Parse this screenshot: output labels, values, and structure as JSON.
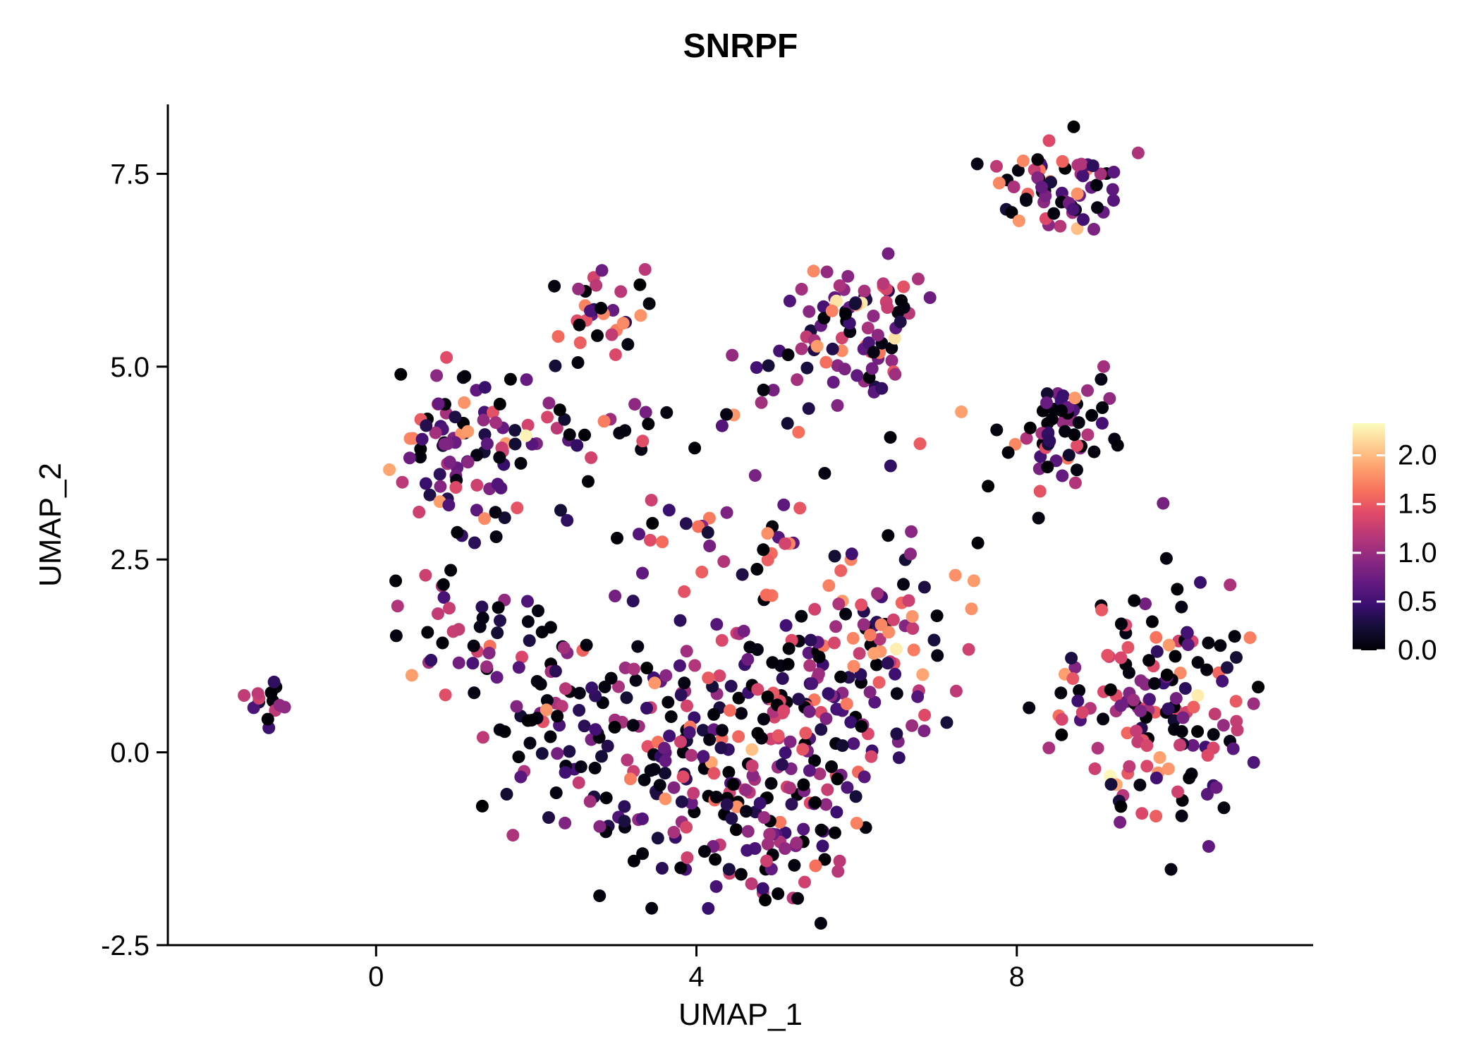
{
  "chart_data": {
    "type": "scatter",
    "title": "SNRPF",
    "xlabel": "UMAP_1",
    "ylabel": "UMAP_2",
    "grid": false,
    "xlim": [
      -2.6,
      11.7
    ],
    "ylim": [
      -2.5,
      8.4
    ],
    "x_ticks": {
      "values": [
        0,
        4,
        8
      ],
      "labels": [
        "0",
        "4",
        "8"
      ]
    },
    "y_ticks": {
      "values": [
        -2.5,
        0.0,
        2.5,
        5.0,
        7.5
      ],
      "labels": [
        "-2.5",
        "0.0",
        "2.5",
        "5.0",
        "7.5"
      ]
    },
    "legend": {
      "position": "right",
      "vmin": 0,
      "vmax": 2.33,
      "ticks": [
        {
          "value": 2.0,
          "label": "2.0"
        },
        {
          "value": 1.5,
          "label": "1.5"
        },
        {
          "value": 1.0,
          "label": "1.0"
        },
        {
          "value": 0.5,
          "label": "0.5"
        },
        {
          "value": 0.0,
          "label": "0.0"
        }
      ]
    },
    "colormap": {
      "name": "magma",
      "stops": [
        "#000004",
        "#140e36",
        "#3b0f70",
        "#641a80",
        "#8c2981",
        "#b73779",
        "#de4968",
        "#f7705c",
        "#fe9f6d",
        "#fece91",
        "#fcfdbf"
      ]
    },
    "point_radius_px": 9,
    "seed": 20,
    "value_bins": [
      [
        0,
        0.08
      ],
      [
        0.2,
        0.6
      ],
      [
        0.6,
        1.1
      ],
      [
        1.1,
        1.5
      ],
      [
        1.5,
        1.9
      ],
      [
        1.9,
        2.3
      ]
    ],
    "clusters": [
      {
        "name": "far-left-blob",
        "cx": -1.35,
        "cy": 0.68,
        "sx": 0.2,
        "sy": 0.13,
        "n": 14,
        "bin_weights": [
          0.3,
          0.2,
          0.3,
          0.2,
          0.0,
          0.0
        ]
      },
      {
        "name": "upper-left",
        "cx": 1.15,
        "cy": 3.95,
        "sx": 0.5,
        "sy": 0.5,
        "n": 95,
        "bin_weights": [
          0.22,
          0.2,
          0.24,
          0.2,
          0.12,
          0.02
        ]
      },
      {
        "name": "left-mid",
        "cx": 1.3,
        "cy": 1.5,
        "sx": 0.5,
        "sy": 0.38,
        "n": 48,
        "bin_weights": [
          0.42,
          0.22,
          0.2,
          0.12,
          0.04,
          0.0
        ]
      },
      {
        "name": "central-west",
        "cx": 3.8,
        "cy": 0.0,
        "sx": 0.85,
        "sy": 0.8,
        "n": 150,
        "bin_weights": [
          0.34,
          0.22,
          0.22,
          0.15,
          0.06,
          0.01
        ]
      },
      {
        "name": "central-east",
        "cx": 5.3,
        "cy": 0.4,
        "sx": 0.85,
        "sy": 0.8,
        "n": 150,
        "bin_weights": [
          0.3,
          0.2,
          0.22,
          0.18,
          0.09,
          0.01
        ]
      },
      {
        "name": "central-south",
        "cx": 4.6,
        "cy": -1.3,
        "sx": 0.75,
        "sy": 0.38,
        "n": 55,
        "bin_weights": [
          0.36,
          0.22,
          0.2,
          0.15,
          0.07,
          0.0
        ]
      },
      {
        "name": "central-north-band",
        "cx": 4.2,
        "cy": 2.6,
        "sx": 0.9,
        "sy": 0.3,
        "n": 25,
        "bin_weights": [
          0.2,
          0.12,
          0.18,
          0.25,
          0.23,
          0.02
        ]
      },
      {
        "name": "orange-ridge",
        "cx": 6.3,
        "cy": 1.9,
        "sx": 0.55,
        "sy": 0.55,
        "n": 45,
        "bin_weights": [
          0.1,
          0.08,
          0.14,
          0.2,
          0.42,
          0.06
        ]
      },
      {
        "name": "left-inner",
        "cx": 2.4,
        "cy": 0.3,
        "sx": 0.45,
        "sy": 0.6,
        "n": 40,
        "bin_weights": [
          0.4,
          0.25,
          0.2,
          0.12,
          0.03,
          0.0
        ]
      },
      {
        "name": "top-middle",
        "cx": 2.9,
        "cy": 5.75,
        "sx": 0.28,
        "sy": 0.3,
        "n": 30,
        "bin_weights": [
          0.25,
          0.15,
          0.2,
          0.24,
          0.14,
          0.02
        ]
      },
      {
        "name": "upper-center-right",
        "cx": 5.9,
        "cy": 5.35,
        "sx": 0.45,
        "sy": 0.5,
        "n": 90,
        "bin_weights": [
          0.14,
          0.24,
          0.3,
          0.2,
          0.1,
          0.02
        ]
      },
      {
        "name": "mid-band",
        "cx": 3.5,
        "cy": 4.3,
        "sx": 1.0,
        "sy": 0.18,
        "n": 22,
        "bin_weights": [
          0.4,
          0.2,
          0.2,
          0.15,
          0.05,
          0.0
        ]
      },
      {
        "name": "top-right",
        "cx": 8.5,
        "cy": 7.35,
        "sx": 0.42,
        "sy": 0.3,
        "n": 65,
        "bin_weights": [
          0.2,
          0.18,
          0.24,
          0.18,
          0.13,
          0.07
        ]
      },
      {
        "name": "right-mid",
        "cx": 8.6,
        "cy": 4.2,
        "sx": 0.35,
        "sy": 0.4,
        "n": 55,
        "bin_weights": [
          0.38,
          0.22,
          0.2,
          0.14,
          0.05,
          0.01
        ]
      },
      {
        "name": "bottom-right",
        "cx": 9.8,
        "cy": 0.5,
        "sx": 0.65,
        "sy": 0.8,
        "n": 150,
        "bin_weights": [
          0.24,
          0.18,
          0.24,
          0.22,
          0.1,
          0.02
        ]
      },
      {
        "name": "sparse-field",
        "cx": 5.5,
        "cy": 3.4,
        "sx": 2.2,
        "sy": 1.5,
        "n": 30,
        "bin_weights": [
          0.35,
          0.2,
          0.2,
          0.15,
          0.1,
          0.0
        ]
      }
    ]
  }
}
